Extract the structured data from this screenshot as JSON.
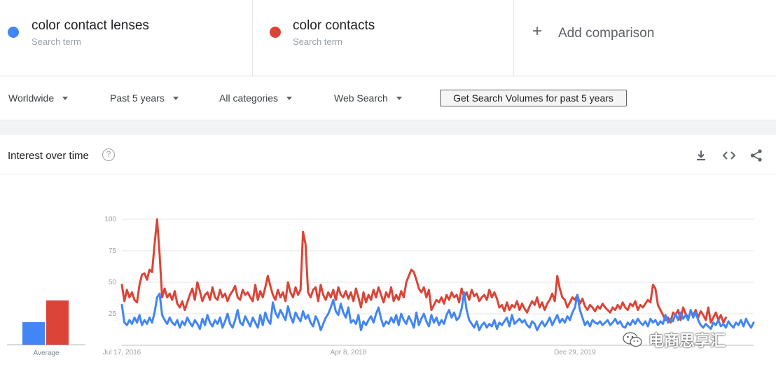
{
  "terms": [
    {
      "name": "color contact lenses",
      "sub": "Search term",
      "color": "#4285f4"
    },
    {
      "name": "color contacts",
      "sub": "Search term",
      "color": "#db4437"
    }
  ],
  "add_comparison": {
    "icon": "plus-icon",
    "label": "Add comparison"
  },
  "filters": {
    "region": "Worldwide",
    "period": "Past 5 years",
    "category": "All categories",
    "search_type": "Web Search",
    "volume_button": "Get Search Volumes for past 5 years"
  },
  "card": {
    "title": "Interest over time",
    "help_icon": "help-circle-icon",
    "tools": [
      "download-icon",
      "embed-code-icon",
      "share-icon"
    ]
  },
  "average": {
    "label": "Average",
    "values": [
      {
        "term": "color contact lenses",
        "value": 18
      },
      {
        "term": "color contacts",
        "value": 35
      }
    ]
  },
  "chart_data": {
    "type": "line",
    "ylim": [
      0,
      100
    ],
    "y_ticks": [
      "100",
      "75",
      "50",
      "25"
    ],
    "x_tick_labels": [
      "Jul 17, 2016",
      "Apr 8, 2018",
      "Dec 29, 2019"
    ],
    "x_tick_index": [
      0,
      90,
      180
    ],
    "grid": true,
    "series": [
      {
        "name": "color contact lenses",
        "color": "#4285f4",
        "values": [
          32,
          18,
          16,
          20,
          17,
          22,
          18,
          24,
          16,
          20,
          17,
          22,
          18,
          26,
          38,
          41,
          24,
          20,
          17,
          22,
          18,
          16,
          20,
          14,
          19,
          16,
          22,
          18,
          15,
          20,
          17,
          13,
          21,
          16,
          24,
          18,
          15,
          20,
          17,
          22,
          14,
          19,
          25,
          17,
          14,
          20,
          28,
          18,
          16,
          23,
          19,
          15,
          22,
          18,
          14,
          24,
          16,
          26,
          20,
          17,
          34,
          26,
          22,
          28,
          24,
          20,
          31,
          23,
          18,
          26,
          22,
          19,
          27,
          21,
          24,
          18,
          15,
          23,
          19,
          12,
          17,
          22,
          25,
          30,
          36,
          27,
          24,
          33,
          26,
          22,
          30,
          18,
          20,
          17,
          24,
          12,
          19,
          16,
          20,
          23,
          18,
          25,
          30,
          21,
          15,
          19,
          17,
          22,
          18,
          24,
          16,
          25,
          20,
          17,
          23,
          19,
          14,
          26,
          16,
          21,
          25,
          19,
          15,
          24,
          18,
          22,
          16,
          20,
          17,
          24,
          28,
          22,
          26,
          20,
          22,
          29,
          42,
          28,
          20,
          17,
          14,
          19,
          12,
          16,
          18,
          14,
          17,
          15,
          20,
          13,
          18,
          16,
          19,
          22,
          15,
          24,
          17,
          19,
          21,
          18,
          20,
          16,
          14,
          19,
          17,
          12,
          16,
          19,
          15,
          18,
          22,
          16,
          20,
          24,
          18,
          21,
          18,
          23,
          20,
          26,
          30,
          40,
          28,
          22,
          16,
          19,
          15,
          20,
          18,
          17,
          19,
          16,
          18,
          20,
          16,
          18,
          21,
          17,
          19,
          15,
          14,
          18,
          16,
          20,
          17,
          21,
          18,
          16,
          19,
          15,
          21,
          18,
          20,
          16,
          19,
          17,
          24,
          18,
          21,
          19,
          25,
          20,
          26,
          21,
          24,
          20,
          28,
          22,
          26,
          20,
          16,
          14,
          17,
          15,
          13,
          18,
          16,
          20,
          15,
          17,
          14,
          19,
          16,
          14,
          18,
          16,
          20,
          15,
          21,
          17,
          14,
          18
        ]
      },
      {
        "name": "color contacts",
        "color": "#db4437",
        "values": [
          48,
          35,
          44,
          38,
          42,
          36,
          34,
          48,
          56,
          57,
          52,
          60,
          58,
          80,
          100,
          72,
          38,
          45,
          38,
          41,
          36,
          43,
          33,
          30,
          35,
          28,
          34,
          40,
          45,
          36,
          50,
          43,
          35,
          40,
          42,
          36,
          46,
          38,
          36,
          44,
          38,
          41,
          35,
          40,
          43,
          47,
          38,
          36,
          44,
          40,
          42,
          38,
          35,
          48,
          36,
          43,
          38,
          46,
          55,
          47,
          40,
          36,
          44,
          38,
          42,
          35,
          50,
          42,
          38,
          46,
          40,
          44,
          90,
          80,
          42,
          38,
          44,
          46,
          35,
          48,
          40,
          36,
          42,
          38,
          44,
          36,
          46,
          40,
          38,
          43,
          37,
          42,
          35,
          45,
          38,
          30,
          42,
          34,
          40,
          36,
          44,
          38,
          46,
          40,
          34,
          42,
          38,
          46,
          35,
          40,
          36,
          43,
          38,
          50,
          55,
          60,
          58,
          52,
          45,
          42,
          46,
          38,
          44,
          28,
          32,
          36,
          34,
          38,
          33,
          40,
          36,
          42,
          38,
          40,
          34,
          45,
          38,
          42,
          36,
          44,
          39,
          41,
          35,
          38,
          40,
          36,
          44,
          38,
          42,
          37,
          30,
          32,
          27,
          34,
          28,
          32,
          30,
          35,
          28,
          33,
          29,
          26,
          31,
          35,
          32,
          38,
          30,
          34,
          28,
          33,
          36,
          41,
          35,
          55,
          45,
          38,
          36,
          30,
          34,
          38,
          36,
          40,
          33,
          37,
          31,
          28,
          32,
          30,
          27,
          31,
          29,
          33,
          30,
          28,
          26,
          30,
          28,
          32,
          29,
          34,
          30,
          28,
          33,
          31,
          35,
          28,
          32,
          30,
          33,
          36,
          34,
          48,
          45,
          32,
          28,
          24,
          20,
          22,
          18,
          26,
          24,
          28,
          20,
          30,
          25,
          22,
          26,
          24,
          28,
          22,
          27,
          24,
          20,
          30,
          18,
          22,
          26,
          20,
          24,
          18,
          22
        ]
      }
    ]
  },
  "watermark": {
    "icon": "wechat-logo-icon",
    "text": "电商思享汇"
  }
}
